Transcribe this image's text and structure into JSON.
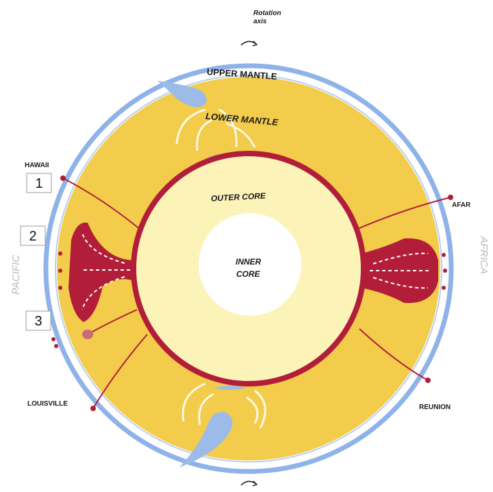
{
  "rotation_axis": {
    "line1": "Rotation",
    "line2": "axis"
  },
  "layers": {
    "upper_mantle": "UPPER MANTLE",
    "lower_mantle": "LOWER MANTLE",
    "outer_core": "OUTER CORE",
    "inner_core_1": "INNER",
    "inner_core_2": "CORE"
  },
  "hotspots": {
    "hawaii": "HAWAII",
    "afar": "AFAR",
    "louisville": "LOUISVILLE",
    "reunion": "REUNION"
  },
  "sides": {
    "left": "PACIFIC",
    "right": "AFRICA"
  },
  "markers": [
    "1",
    "2",
    "3"
  ],
  "colors": {
    "upper_mantle": "#ffffff",
    "lithosphere": "#8fb3e8",
    "lower_mantle": "#f2cc4a",
    "outer_core": "#fbf3b8",
    "inner_core": "#ffffff",
    "plume": "#b21e3a",
    "slab": "#9dbbe8"
  },
  "icons": {
    "rotation": "rotation-arrow-icon"
  }
}
